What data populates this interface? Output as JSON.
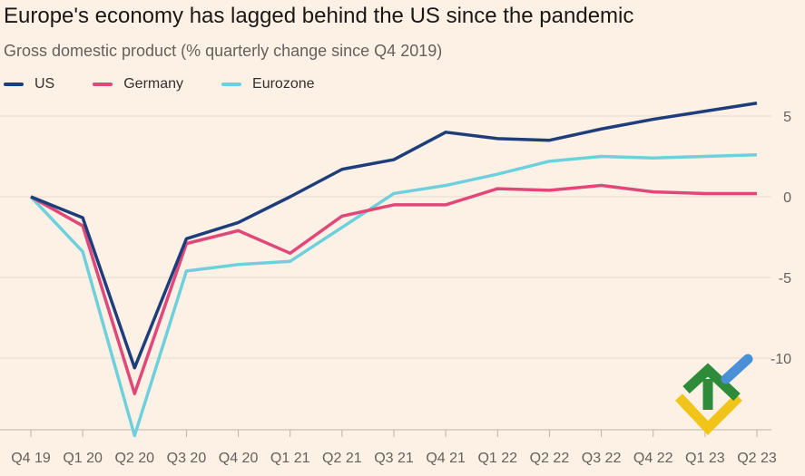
{
  "title": "Europe's economy has lagged behind the US since the pandemic",
  "subtitle": "Gross domestic product (% quarterly change since Q4 2019)",
  "legend": [
    {
      "name": "US",
      "color": "#1e3e7b"
    },
    {
      "name": "Germany",
      "color": "#e0487a"
    },
    {
      "name": "Eurozone",
      "color": "#6ed0dc"
    }
  ],
  "chart_data": {
    "type": "line",
    "categories": [
      "Q4 19",
      "Q1 20",
      "Q2 20",
      "Q3 20",
      "Q4 20",
      "Q1 21",
      "Q2 21",
      "Q3 21",
      "Q4 21",
      "Q1 22",
      "Q2 22",
      "Q3 22",
      "Q4 22",
      "Q1 23",
      "Q2 23"
    ],
    "series": [
      {
        "name": "US",
        "color": "#1e3e7b",
        "values": [
          0,
          -1.3,
          -10.6,
          -2.6,
          -1.6,
          0,
          1.7,
          2.3,
          4.0,
          3.6,
          3.5,
          4.2,
          4.8,
          5.3,
          5.8
        ]
      },
      {
        "name": "Germany",
        "color": "#e0487a",
        "values": [
          0,
          -1.8,
          -12.2,
          -2.9,
          -2.1,
          -3.5,
          -1.2,
          -0.5,
          -0.5,
          0.5,
          0.4,
          0.7,
          0.3,
          0.2,
          0.2
        ]
      },
      {
        "name": "Eurozone",
        "color": "#6ed0dc",
        "values": [
          0,
          -3.4,
          -14.8,
          -4.6,
          -4.2,
          -4.0,
          -1.9,
          0.2,
          0.7,
          1.4,
          2.2,
          2.5,
          2.4,
          2.5,
          2.6
        ]
      }
    ],
    "yticks": [
      5,
      0,
      -5,
      -10
    ],
    "ylim": [
      -15,
      7
    ],
    "grid": true,
    "legend_position": "top-left"
  },
  "logo": {
    "name": "brand-logo-icon",
    "colors": [
      "#2e8b3a",
      "#4a90d9",
      "#f0c419"
    ]
  }
}
